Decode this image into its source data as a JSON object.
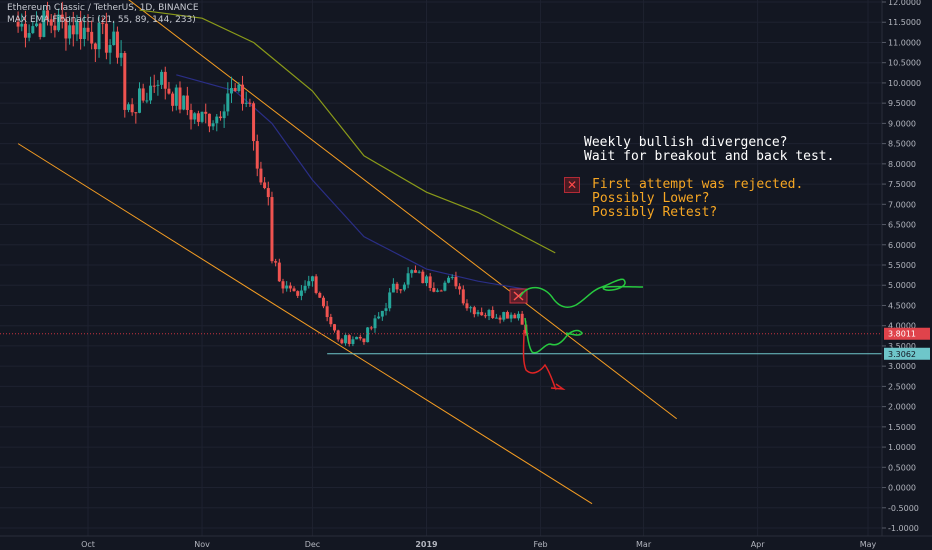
{
  "header": {
    "symbol_line": "Ethereum Classic / TetherUS, 1D, BINANCE",
    "indicator_line": "MAX EMA Fibonacci (21, 55, 89, 144, 233)"
  },
  "annotations": {
    "note1_lines": [
      "Weekly bullish divergence?",
      "Wait for breakout and back test."
    ],
    "note2_lines": [
      "First attempt was rejected.",
      "Possibly Lower?",
      "Possibly Retest?"
    ],
    "x_icon": "close-icon"
  },
  "colors": {
    "background": "#131722",
    "up": "#26a69a",
    "down": "#ef5350",
    "channel": "#f59d22",
    "ema_blue": "#2a2e86",
    "ema_olive": "#8a9a19",
    "note_white": "#ffffff",
    "note_orange": "#f6a623",
    "current_price_bg": "#e0434b",
    "support_bg": "#6ec6ca"
  },
  "chart_data": {
    "type": "candlestick",
    "pair": "ETC/USDT",
    "interval": "1D",
    "exchange": "BINANCE",
    "y_axis": {
      "ylim": [
        -1.0,
        12.0
      ],
      "ticks": [
        "-1.0000",
        "-0.5000",
        "0.0000",
        "0.5000",
        "1.0000",
        "1.5000",
        "2.0000",
        "2.5000",
        "3.0000",
        "3.5000",
        "4.0000",
        "4.5000",
        "5.0000",
        "5.5000",
        "6.0000",
        "6.5000",
        "7.0000",
        "7.5000",
        "8.0000",
        "8.5000",
        "9.0000",
        "9.5000",
        "10.0000",
        "10.5000",
        "11.0000",
        "11.5000",
        "12.0000"
      ]
    },
    "x_axis": {
      "ticks": [
        {
          "label": "Oct",
          "date": "2018-10-01"
        },
        {
          "label": "Nov",
          "date": "2018-11-01"
        },
        {
          "label": "Dec",
          "date": "2018-12-01"
        },
        {
          "label": "2019",
          "date": "2019-01-01"
        },
        {
          "label": "Feb",
          "date": "2019-02-01"
        },
        {
          "label": "Mar",
          "date": "2019-03-01"
        },
        {
          "label": "Apr",
          "date": "2019-04-01"
        },
        {
          "label": "May",
          "date": "2019-05-01"
        }
      ],
      "range": [
        "2018-09-12",
        "2019-05-05"
      ]
    },
    "price_labels": {
      "current": "3.8011",
      "support": "3.3062"
    },
    "keypoints": [
      {
        "date": "2018-09-12",
        "price": 11.4
      },
      {
        "date": "2018-09-20",
        "price": 11.5
      },
      {
        "date": "2018-09-28",
        "price": 11.4
      },
      {
        "date": "2018-10-05",
        "price": 11.1
      },
      {
        "date": "2018-10-10",
        "price": 10.8
      },
      {
        "date": "2018-10-11",
        "price": 9.3
      },
      {
        "date": "2018-10-16",
        "price": 9.6
      },
      {
        "date": "2018-10-20",
        "price": 10.2
      },
      {
        "date": "2018-10-25",
        "price": 9.6
      },
      {
        "date": "2018-10-31",
        "price": 9.1
      },
      {
        "date": "2018-11-05",
        "price": 9.2
      },
      {
        "date": "2018-11-08",
        "price": 9.8
      },
      {
        "date": "2018-11-14",
        "price": 9.5
      },
      {
        "date": "2018-11-16",
        "price": 7.7
      },
      {
        "date": "2018-11-19",
        "price": 7.3
      },
      {
        "date": "2018-11-20",
        "price": 5.7
      },
      {
        "date": "2018-11-23",
        "price": 5.0
      },
      {
        "date": "2018-11-27",
        "price": 4.6
      },
      {
        "date": "2018-12-01",
        "price": 5.2
      },
      {
        "date": "2018-12-05",
        "price": 4.3
      },
      {
        "date": "2018-12-08",
        "price": 3.6
      },
      {
        "date": "2018-12-12",
        "price": 3.7
      },
      {
        "date": "2018-12-15",
        "price": 3.7
      },
      {
        "date": "2018-12-19",
        "price": 4.2
      },
      {
        "date": "2018-12-23",
        "price": 4.9
      },
      {
        "date": "2018-12-28",
        "price": 5.3
      },
      {
        "date": "2019-01-03",
        "price": 5.0
      },
      {
        "date": "2019-01-09",
        "price": 5.1
      },
      {
        "date": "2019-01-12",
        "price": 4.5
      },
      {
        "date": "2019-01-17",
        "price": 4.3
      },
      {
        "date": "2019-01-23",
        "price": 4.3
      },
      {
        "date": "2019-01-26",
        "price": 4.3
      },
      {
        "date": "2019-01-28",
        "price": 3.8
      }
    ],
    "ema_blue": [
      {
        "date": "2018-10-25",
        "price": 10.2
      },
      {
        "date": "2018-11-10",
        "price": 9.8
      },
      {
        "date": "2018-11-20",
        "price": 9.0
      },
      {
        "date": "2018-12-01",
        "price": 7.6
      },
      {
        "date": "2018-12-15",
        "price": 6.2
      },
      {
        "date": "2019-01-01",
        "price": 5.4
      },
      {
        "date": "2019-01-15",
        "price": 5.1
      },
      {
        "date": "2019-01-28",
        "price": 4.9
      }
    ],
    "ema_olive": [
      {
        "date": "2018-10-15",
        "price": 11.8
      },
      {
        "date": "2018-11-01",
        "price": 11.6
      },
      {
        "date": "2018-11-15",
        "price": 11.0
      },
      {
        "date": "2018-12-01",
        "price": 9.8
      },
      {
        "date": "2018-12-15",
        "price": 8.2
      },
      {
        "date": "2019-01-01",
        "price": 7.3
      },
      {
        "date": "2019-01-15",
        "price": 6.8
      },
      {
        "date": "2019-02-05",
        "price": 5.8
      }
    ],
    "channel_upper": [
      {
        "date": "2018-10-10",
        "price": 12.2
      },
      {
        "date": "2019-03-10",
        "price": 1.7
      }
    ],
    "channel_lower": [
      {
        "date": "2018-09-12",
        "price": 8.5
      },
      {
        "date": "2019-02-15",
        "price": -0.4
      }
    ],
    "support_line": 3.3062,
    "current_price_line": 3.8011
  }
}
